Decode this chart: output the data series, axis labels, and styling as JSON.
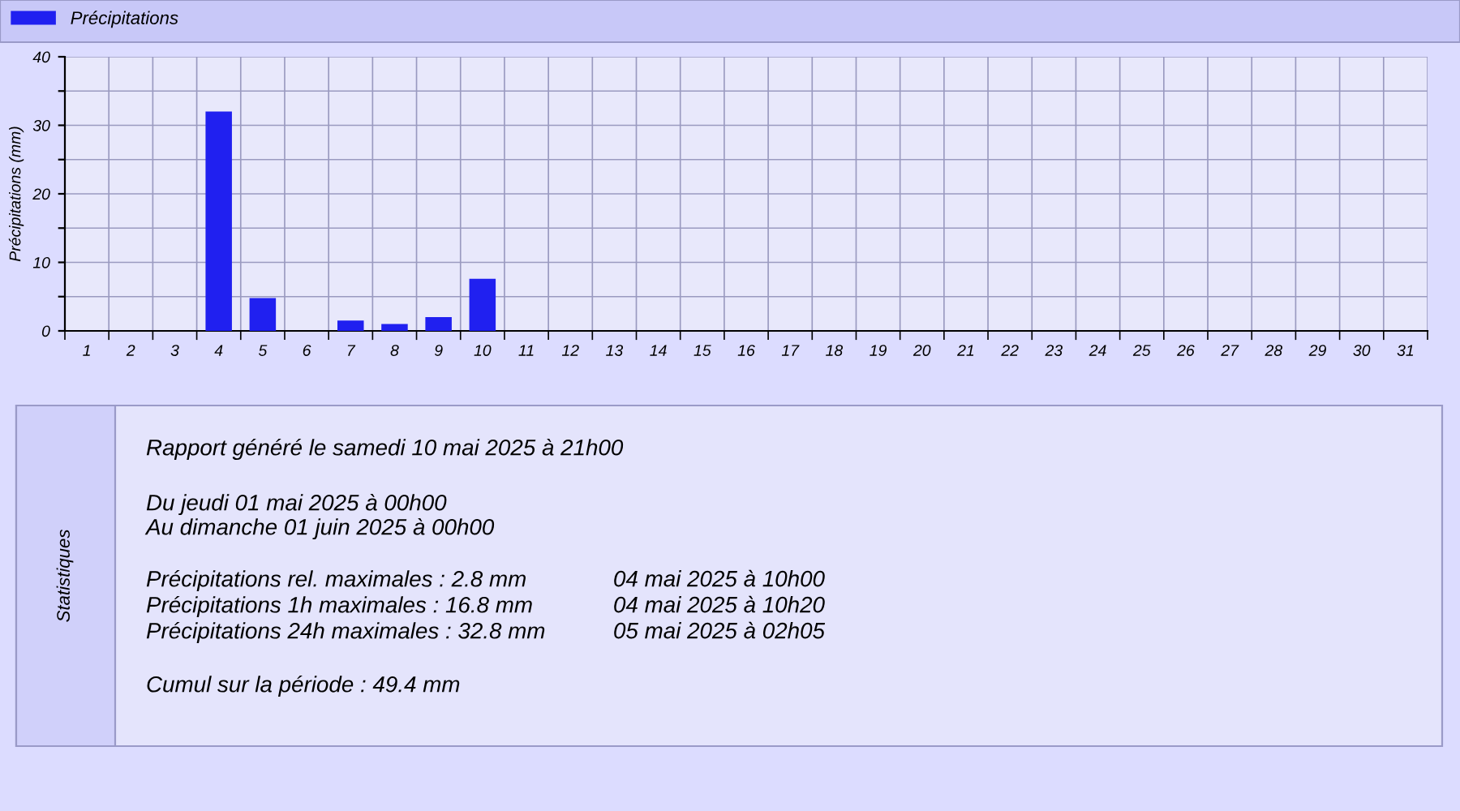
{
  "chart_data": {
    "type": "bar",
    "categories": [
      "1",
      "2",
      "3",
      "4",
      "5",
      "6",
      "7",
      "8",
      "9",
      "10",
      "11",
      "12",
      "13",
      "14",
      "15",
      "16",
      "17",
      "18",
      "19",
      "20",
      "21",
      "22",
      "23",
      "24",
      "25",
      "26",
      "27",
      "28",
      "29",
      "30",
      "31"
    ],
    "series": [
      {
        "name": "Précipitations",
        "color": "#2020f0",
        "values": [
          0,
          0,
          0,
          32,
          4.8,
          0,
          1.5,
          1.0,
          2.0,
          7.6,
          null,
          null,
          null,
          null,
          null,
          null,
          null,
          null,
          null,
          null,
          null,
          null,
          null,
          null,
          null,
          null,
          null,
          null,
          null,
          null,
          null
        ]
      }
    ],
    "ylabel": "Précipitations (mm)",
    "ylim": [
      0,
      40
    ],
    "yticks": [
      0,
      {
        "value": 5,
        "label": null
      },
      10,
      {
        "value": 15,
        "label": null
      },
      20,
      {
        "value": 25,
        "label": null
      },
      30,
      {
        "value": 35,
        "label": null
      },
      40
    ],
    "grid": true,
    "legend": "top left",
    "annotations": [
      "Statistiques",
      "Rapport généré le samedi 10 mai 2025 à 21h00",
      "Du jeudi 01 mai 2025 à 00h00",
      "Au dimanche 01 juin 2025 à 00h00",
      "Précipitations rel. maximales : 2.8 mm",
      "Précipitations 1h maximales : 16.8 mm",
      "Précipitations 24h maximales : 32.8 mm",
      "04 mai 2025 à 10h00",
      "04 mai 2025 à 10h20",
      "05 mai 2025 à 02h05",
      "Cumul sur la période : 49.4 mm"
    ]
  }
}
